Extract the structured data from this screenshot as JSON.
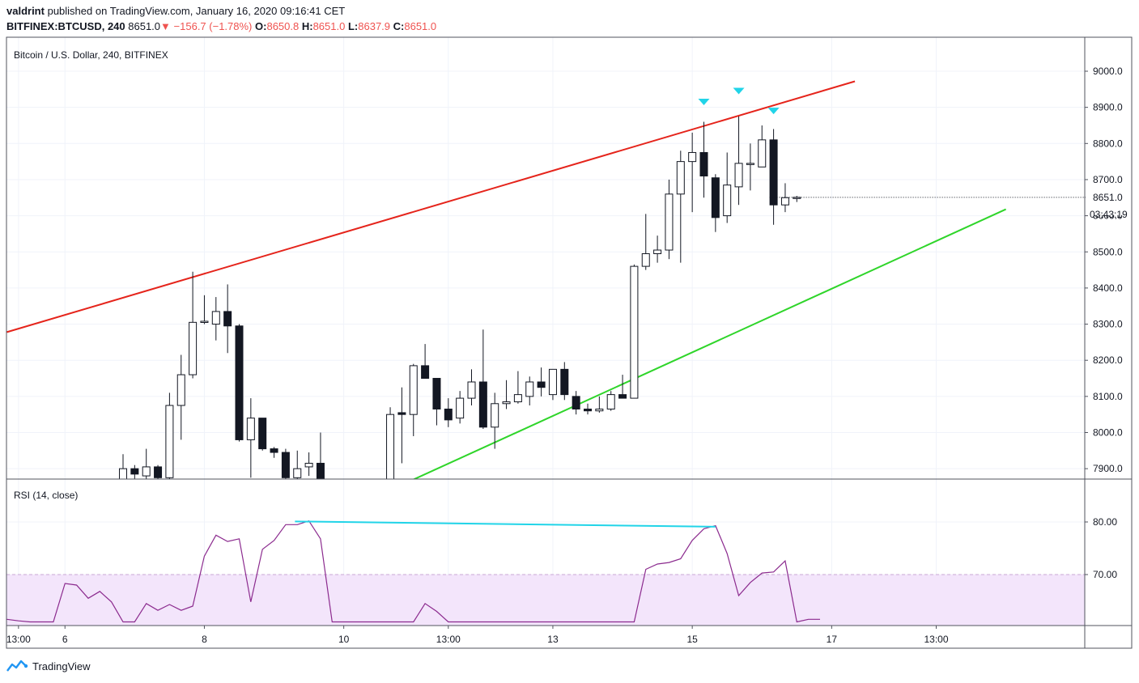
{
  "header": {
    "author": "valdrint",
    "published_text": "published on TradingView.com, January 16, 2020 09:16:41 CET",
    "symbol": "BITFINEX:BTCUSD, 240",
    "last": "8651.0",
    "change": "−156.7 (−1.78%)",
    "open_label": "O:",
    "open": "8650.8",
    "high_label": "H:",
    "high": "8651.0",
    "low_label": "L:",
    "low": "8637.9",
    "close_label": "C:",
    "close": "8651.0"
  },
  "footer": {
    "brand": "TradingView"
  },
  "colors": {
    "up": "#ffffff",
    "down": "#131722",
    "resistance": "#e5241b",
    "support": "#2fd52a",
    "rsi": "#8b2a8e",
    "divergence": "#21d4e8",
    "rsi_band": "#f3e5fb"
  },
  "chart_data": [
    {
      "type": "candlestick",
      "title": "Bitcoin / U.S. Dollar, 240, BITFINEX",
      "ylim": [
        7870,
        9100
      ],
      "y_ticks": [
        "9000.0",
        "8900.0",
        "8800.0",
        "8700.0",
        "8600.0",
        "8500.0",
        "8400.0",
        "8300.0",
        "8200.0",
        "8100.0",
        "8000.0",
        "7900.0"
      ],
      "last_price_label": "8651.0",
      "countdown_label": "03:43:19",
      "x_ticks": [
        {
          "label": "13:00",
          "x": 1
        },
        {
          "label": "6",
          "x": 5
        },
        {
          "label": "8",
          "x": 17
        },
        {
          "label": "10",
          "x": 29
        },
        {
          "label": "13:00",
          "x": 38
        },
        {
          "label": "13",
          "x": 47
        },
        {
          "label": "15",
          "x": 59
        },
        {
          "label": "17",
          "x": 71
        },
        {
          "label": "13:00",
          "x": 80
        }
      ],
      "candles": [
        {
          "x": 10,
          "o": 7870,
          "h": 7940,
          "l": 7870,
          "c": 7900
        },
        {
          "x": 11,
          "o": 7900,
          "h": 7910,
          "l": 7870,
          "c": 7885
        },
        {
          "x": 12,
          "o": 7880,
          "h": 7955,
          "l": 7870,
          "c": 7905
        },
        {
          "x": 13,
          "o": 7905,
          "h": 7910,
          "l": 7870,
          "c": 7875
        },
        {
          "x": 14,
          "o": 7875,
          "h": 8110,
          "l": 7870,
          "c": 8075
        },
        {
          "x": 15,
          "o": 8075,
          "h": 8215,
          "l": 7980,
          "c": 8160
        },
        {
          "x": 16,
          "o": 8160,
          "h": 8445,
          "l": 8150,
          "c": 8305
        },
        {
          "x": 17,
          "o": 8305,
          "h": 8380,
          "l": 8300,
          "c": 8308
        },
        {
          "x": 18,
          "o": 8300,
          "h": 8375,
          "l": 8255,
          "c": 8335
        },
        {
          "x": 19,
          "o": 8335,
          "h": 8410,
          "l": 8220,
          "c": 8295
        },
        {
          "x": 20,
          "o": 8295,
          "h": 8300,
          "l": 7975,
          "c": 7980
        },
        {
          "x": 21,
          "o": 7980,
          "h": 8095,
          "l": 7875,
          "c": 8040
        },
        {
          "x": 22,
          "o": 8040,
          "h": 8040,
          "l": 7950,
          "c": 7955
        },
        {
          "x": 23,
          "o": 7955,
          "h": 7960,
          "l": 7930,
          "c": 7945
        },
        {
          "x": 24,
          "o": 7945,
          "h": 7955,
          "l": 7870,
          "c": 7875
        },
        {
          "x": 25,
          "o": 7875,
          "h": 7950,
          "l": 7870,
          "c": 7900
        },
        {
          "x": 26,
          "o": 7905,
          "h": 7945,
          "l": 7880,
          "c": 7915
        },
        {
          "x": 27,
          "o": 7915,
          "h": 8000,
          "l": 7870,
          "c": 7870
        },
        {
          "x": 33,
          "o": 7870,
          "h": 8070,
          "l": 7870,
          "c": 8050
        },
        {
          "x": 34,
          "o": 8055,
          "h": 8125,
          "l": 7915,
          "c": 8050
        },
        {
          "x": 35,
          "o": 8050,
          "h": 8190,
          "l": 7990,
          "c": 8185
        },
        {
          "x": 36,
          "o": 8185,
          "h": 8245,
          "l": 8155,
          "c": 8150
        },
        {
          "x": 37,
          "o": 8150,
          "h": 8150,
          "l": 8020,
          "c": 8065
        },
        {
          "x": 38,
          "o": 8065,
          "h": 8095,
          "l": 8015,
          "c": 8035
        },
        {
          "x": 39,
          "o": 8040,
          "h": 8115,
          "l": 8025,
          "c": 8095
        },
        {
          "x": 40,
          "o": 8095,
          "h": 8175,
          "l": 8075,
          "c": 8140
        },
        {
          "x": 41,
          "o": 8140,
          "h": 8285,
          "l": 8010,
          "c": 8015
        },
        {
          "x": 42,
          "o": 8015,
          "h": 8110,
          "l": 7955,
          "c": 8080
        },
        {
          "x": 43,
          "o": 8080,
          "h": 8145,
          "l": 8065,
          "c": 8085
        },
        {
          "x": 44,
          "o": 8085,
          "h": 8170,
          "l": 8080,
          "c": 8105
        },
        {
          "x": 45,
          "o": 8100,
          "h": 8155,
          "l": 8075,
          "c": 8140
        },
        {
          "x": 46,
          "o": 8140,
          "h": 8180,
          "l": 8100,
          "c": 8125
        },
        {
          "x": 47,
          "o": 8105,
          "h": 8175,
          "l": 8090,
          "c": 8175
        },
        {
          "x": 48,
          "o": 8175,
          "h": 8195,
          "l": 8090,
          "c": 8105
        },
        {
          "x": 49,
          "o": 8100,
          "h": 8115,
          "l": 8050,
          "c": 8065
        },
        {
          "x": 50,
          "o": 8065,
          "h": 8080,
          "l": 8050,
          "c": 8060
        },
        {
          "x": 51,
          "o": 8060,
          "h": 8100,
          "l": 8055,
          "c": 8065
        },
        {
          "x": 52,
          "o": 8065,
          "h": 8115,
          "l": 8060,
          "c": 8105
        },
        {
          "x": 53,
          "o": 8105,
          "h": 8160,
          "l": 8095,
          "c": 8095
        },
        {
          "x": 54,
          "o": 8095,
          "h": 8465,
          "l": 8095,
          "c": 8460
        },
        {
          "x": 55,
          "o": 8460,
          "h": 8605,
          "l": 8450,
          "c": 8495
        },
        {
          "x": 56,
          "o": 8495,
          "h": 8545,
          "l": 8470,
          "c": 8505
        },
        {
          "x": 57,
          "o": 8505,
          "h": 8700,
          "l": 8480,
          "c": 8660
        },
        {
          "x": 58,
          "o": 8660,
          "h": 8780,
          "l": 8470,
          "c": 8750
        },
        {
          "x": 59,
          "o": 8750,
          "h": 8830,
          "l": 8610,
          "c": 8775
        },
        {
          "x": 60,
          "o": 8775,
          "h": 8860,
          "l": 8650,
          "c": 8710
        },
        {
          "x": 61,
          "o": 8705,
          "h": 8715,
          "l": 8555,
          "c": 8595
        },
        {
          "x": 62,
          "o": 8600,
          "h": 8775,
          "l": 8580,
          "c": 8685
        },
        {
          "x": 63,
          "o": 8680,
          "h": 8875,
          "l": 8630,
          "c": 8745
        },
        {
          "x": 64,
          "o": 8745,
          "h": 8800,
          "l": 8670,
          "c": 8745
        },
        {
          "x": 65,
          "o": 8735,
          "h": 8850,
          "l": 8740,
          "c": 8810
        },
        {
          "x": 66,
          "o": 8810,
          "h": 8840,
          "l": 8575,
          "c": 8630
        },
        {
          "x": 67,
          "o": 8630,
          "h": 8690,
          "l": 8610,
          "c": 8650
        },
        {
          "x": 68,
          "o": 8650,
          "h": 8655,
          "l": 8638,
          "c": 8651
        }
      ],
      "resistance_line": [
        {
          "x": 0,
          "y": 8278
        },
        {
          "x": 73,
          "y": 8972
        }
      ],
      "support_line": [
        {
          "x": 35,
          "y": 7870
        },
        {
          "x": 86,
          "y": 8618
        }
      ],
      "top_markers": [
        {
          "x": 60,
          "y": 8915
        },
        {
          "x": 63,
          "y": 8945
        },
        {
          "x": 66,
          "y": 8890
        }
      ]
    },
    {
      "type": "line",
      "title": "RSI (14, close)",
      "ylim": [
        61,
        85
      ],
      "y_ticks": [
        "80.00",
        "70.00"
      ],
      "band": [
        61,
        70
      ],
      "series": [
        {
          "points": [
            {
              "x": 0,
              "y": 61.5
            },
            {
              "x": 1,
              "y": 61.2
            },
            {
              "x": 2,
              "y": 61
            },
            {
              "x": 3,
              "y": 61
            },
            {
              "x": 4,
              "y": 61
            },
            {
              "x": 5,
              "y": 68.3
            },
            {
              "x": 6,
              "y": 68
            },
            {
              "x": 7,
              "y": 65.5
            },
            {
              "x": 8,
              "y": 66.8
            },
            {
              "x": 9,
              "y": 64.8
            },
            {
              "x": 10,
              "y": 61
            },
            {
              "x": 11,
              "y": 61
            },
            {
              "x": 12,
              "y": 64.5
            },
            {
              "x": 13,
              "y": 63.2
            },
            {
              "x": 14,
              "y": 64.3
            },
            {
              "x": 15,
              "y": 63.2
            },
            {
              "x": 16,
              "y": 64
            },
            {
              "x": 17,
              "y": 73.5
            },
            {
              "x": 18,
              "y": 77.5
            },
            {
              "x": 19,
              "y": 76.3
            },
            {
              "x": 20,
              "y": 76.8
            },
            {
              "x": 21,
              "y": 64.8
            },
            {
              "x": 22,
              "y": 74.8
            },
            {
              "x": 23,
              "y": 76.5
            },
            {
              "x": 24,
              "y": 79.5
            },
            {
              "x": 25,
              "y": 79.5
            },
            {
              "x": 26,
              "y": 80.2
            },
            {
              "x": 27,
              "y": 76.8
            },
            {
              "x": 28,
              "y": 61
            },
            {
              "x": 35,
              "y": 61
            },
            {
              "x": 36,
              "y": 64.5
            },
            {
              "x": 37,
              "y": 63
            },
            {
              "x": 38,
              "y": 61
            },
            {
              "x": 54,
              "y": 61
            },
            {
              "x": 55,
              "y": 71
            },
            {
              "x": 56,
              "y": 72
            },
            {
              "x": 57,
              "y": 72.3
            },
            {
              "x": 58,
              "y": 73
            },
            {
              "x": 59,
              "y": 76.5
            },
            {
              "x": 60,
              "y": 78.7
            },
            {
              "x": 61,
              "y": 79.3
            },
            {
              "x": 62,
              "y": 74
            },
            {
              "x": 63,
              "y": 66
            },
            {
              "x": 64,
              "y": 68.5
            },
            {
              "x": 65,
              "y": 70.3
            },
            {
              "x": 66,
              "y": 70.5
            },
            {
              "x": 67,
              "y": 72.6
            },
            {
              "x": 68,
              "y": 61
            },
            {
              "x": 69,
              "y": 61.5
            },
            {
              "x": 70,
              "y": 61.5
            }
          ]
        }
      ],
      "divergence_line": [
        {
          "x": 24.8,
          "y": 80.1
        },
        {
          "x": 61,
          "y": 79.1
        }
      ]
    }
  ]
}
